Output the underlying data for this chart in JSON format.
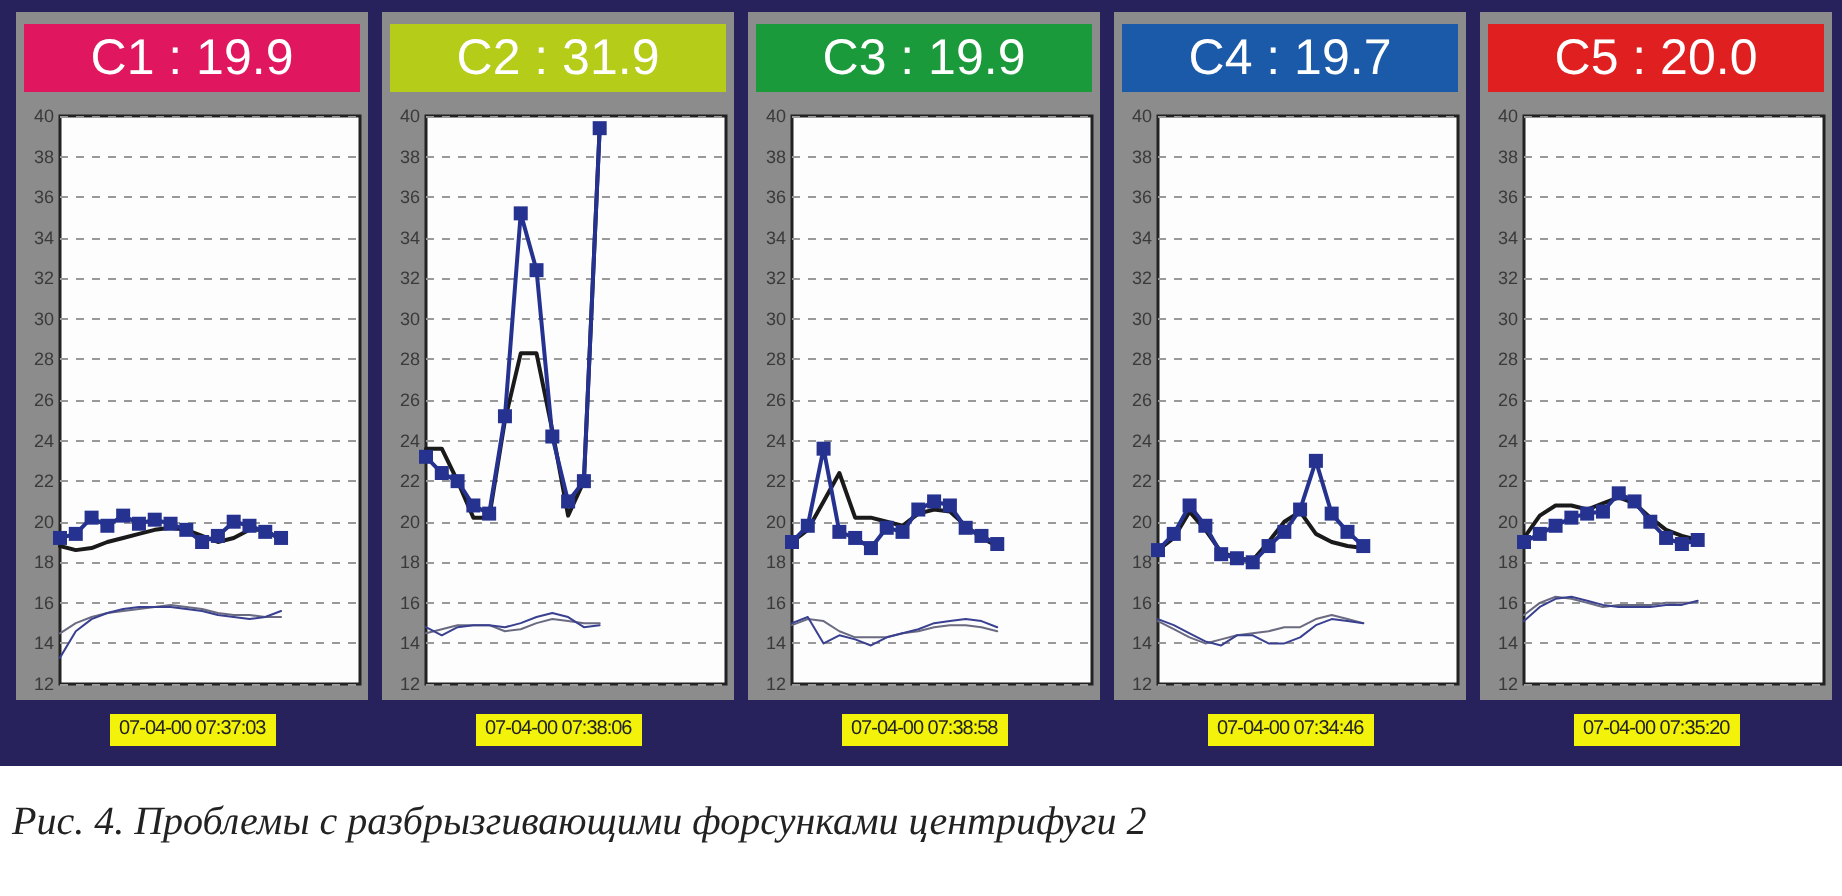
{
  "chart_data": [
    {
      "type": "line",
      "title": "C1 : 19.9",
      "annotations": [
        "07-04-00 07:37:03",
        "Рис. 4. Проблемы с разбрызгивающими форсунками центрифуги 2"
      ],
      "categories": [
        null,
        null,
        null,
        null,
        null,
        null,
        null,
        null,
        null,
        null,
        null,
        null,
        null,
        null,
        null,
        null,
        null,
        null,
        null,
        null
      ],
      "ylim": [
        12,
        40
      ],
      "yticks": [
        12,
        14,
        16,
        18,
        20,
        22,
        24,
        26,
        28,
        30,
        32,
        34,
        36,
        38,
        40
      ],
      "grid": "y",
      "series": [
        {
          "color": "#26328f",
          "marker": "square",
          "values": [
            19.2,
            19.4,
            20.2,
            19.8,
            20.3,
            19.9,
            20.1,
            19.9,
            19.6,
            19.0,
            19.3,
            20.0,
            19.8,
            19.5,
            19.2,
            null,
            null,
            null,
            null,
            null
          ]
        },
        {
          "color": "#1a1a1a",
          "marker": "none",
          "values": [
            18.8,
            18.6,
            18.7,
            19.0,
            19.2,
            19.4,
            19.6,
            19.7,
            19.6,
            19.3,
            19.0,
            19.2,
            19.6,
            19.6,
            19.1,
            null,
            null,
            null,
            null,
            null
          ]
        },
        {
          "color": "#3a4090",
          "marker": "none",
          "values": [
            13.3,
            14.6,
            15.2,
            15.5,
            15.7,
            15.8,
            15.8,
            15.8,
            15.7,
            15.6,
            15.4,
            15.3,
            15.2,
            15.3,
            15.6,
            null,
            null,
            null,
            null,
            null
          ]
        },
        {
          "color": "#6a6a80",
          "marker": "none",
          "values": [
            14.5,
            15.0,
            15.3,
            15.5,
            15.6,
            15.7,
            15.8,
            15.9,
            15.8,
            15.7,
            15.5,
            15.4,
            15.4,
            15.3,
            15.3,
            null,
            null,
            null,
            null,
            null
          ]
        }
      ]
    },
    {
      "type": "line",
      "title": "C2 : 31.9",
      "annotations": [
        "07-04-00 07:38:06"
      ],
      "categories": [
        null,
        null,
        null,
        null,
        null,
        null,
        null,
        null,
        null,
        null,
        null,
        null,
        null,
        null,
        null,
        null,
        null,
        null,
        null,
        null
      ],
      "ylim": [
        12,
        40
      ],
      "yticks": [
        12,
        14,
        16,
        18,
        20,
        22,
        24,
        26,
        28,
        30,
        32,
        34,
        36,
        38,
        40
      ],
      "grid": "y",
      "series": [
        {
          "color": "#26328f",
          "marker": "square",
          "values": [
            23.2,
            22.4,
            22.0,
            20.8,
            20.4,
            25.2,
            35.2,
            32.4,
            24.2,
            21.0,
            22.0,
            39.4,
            null,
            null,
            null,
            null,
            null,
            null,
            null,
            null
          ]
        },
        {
          "color": "#1a1a1a",
          "marker": "none",
          "values": [
            23.6,
            23.6,
            22.0,
            20.2,
            20.2,
            25.0,
            28.3,
            28.3,
            24.5,
            20.3,
            22.0,
            39.4,
            null,
            null,
            null,
            null,
            null,
            null,
            null,
            null
          ]
        },
        {
          "color": "#3a4090",
          "marker": "none",
          "values": [
            14.8,
            14.4,
            14.8,
            14.9,
            14.9,
            14.8,
            15.0,
            15.3,
            15.5,
            15.3,
            14.8,
            14.9,
            null,
            null,
            null,
            null,
            null,
            null,
            null,
            null
          ]
        },
        {
          "color": "#6a6a80",
          "marker": "none",
          "values": [
            14.5,
            14.7,
            14.9,
            14.9,
            14.9,
            14.6,
            14.7,
            15.0,
            15.2,
            15.1,
            15.0,
            15.0,
            null,
            null,
            null,
            null,
            null,
            null,
            null,
            null
          ]
        }
      ]
    },
    {
      "type": "line",
      "title": "C3 : 19.9",
      "annotations": [
        "07-04-00 07:38:58"
      ],
      "categories": [
        null,
        null,
        null,
        null,
        null,
        null,
        null,
        null,
        null,
        null,
        null,
        null,
        null,
        null,
        null,
        null,
        null,
        null,
        null,
        null
      ],
      "ylim": [
        12,
        40
      ],
      "yticks": [
        12,
        14,
        16,
        18,
        20,
        22,
        24,
        26,
        28,
        30,
        32,
        34,
        36,
        38,
        40
      ],
      "grid": "y",
      "series": [
        {
          "color": "#26328f",
          "marker": "square",
          "values": [
            19.0,
            19.8,
            23.6,
            19.5,
            19.2,
            18.7,
            19.7,
            19.5,
            20.6,
            21.0,
            20.8,
            19.7,
            19.3,
            18.9,
            null,
            null,
            null,
            null,
            null,
            null
          ]
        },
        {
          "color": "#1a1a1a",
          "marker": "none",
          "values": [
            19.0,
            19.6,
            21.0,
            22.4,
            20.2,
            20.2,
            20.0,
            19.8,
            20.4,
            20.6,
            20.5,
            19.8,
            19.2,
            18.8,
            null,
            null,
            null,
            null,
            null,
            null
          ]
        },
        {
          "color": "#3a4090",
          "marker": "none",
          "values": [
            15.0,
            15.3,
            14.0,
            14.4,
            14.2,
            13.9,
            14.3,
            14.5,
            14.7,
            15.0,
            15.1,
            15.2,
            15.1,
            14.8,
            null,
            null,
            null,
            null,
            null,
            null
          ]
        },
        {
          "color": "#6a6a80",
          "marker": "none",
          "values": [
            14.9,
            15.2,
            15.1,
            14.6,
            14.3,
            14.3,
            14.3,
            14.5,
            14.6,
            14.8,
            14.9,
            14.9,
            14.8,
            14.6,
            null,
            null,
            null,
            null,
            null,
            null
          ]
        }
      ]
    },
    {
      "type": "line",
      "title": "C4 : 19.7",
      "annotations": [
        "07-04-00 07:34:46"
      ],
      "categories": [
        null,
        null,
        null,
        null,
        null,
        null,
        null,
        null,
        null,
        null,
        null,
        null,
        null,
        null,
        null,
        null,
        null,
        null,
        null,
        null
      ],
      "ylim": [
        12,
        40
      ],
      "yticks": [
        12,
        14,
        16,
        18,
        20,
        22,
        24,
        26,
        28,
        30,
        32,
        34,
        36,
        38,
        40
      ],
      "grid": "y",
      "series": [
        {
          "color": "#26328f",
          "marker": "square",
          "values": [
            18.6,
            19.4,
            20.8,
            19.8,
            18.4,
            18.2,
            18.0,
            18.8,
            19.5,
            20.6,
            23.0,
            20.4,
            19.5,
            18.8,
            null,
            null,
            null,
            null,
            null,
            null
          ]
        },
        {
          "color": "#1a1a1a",
          "marker": "none",
          "values": [
            18.6,
            19.2,
            20.5,
            19.6,
            18.5,
            18.2,
            18.1,
            19.0,
            20.0,
            20.5,
            19.4,
            19.0,
            18.8,
            18.7,
            null,
            null,
            null,
            null,
            null,
            null
          ]
        },
        {
          "color": "#3a4090",
          "marker": "none",
          "values": [
            15.2,
            14.9,
            14.5,
            14.1,
            13.9,
            14.4,
            14.4,
            14.0,
            14.0,
            14.3,
            14.9,
            15.2,
            15.1,
            15.0,
            null,
            null,
            null,
            null,
            null,
            null
          ]
        },
        {
          "color": "#6a6a80",
          "marker": "none",
          "values": [
            15.1,
            14.7,
            14.3,
            14.0,
            14.2,
            14.4,
            14.5,
            14.6,
            14.8,
            14.8,
            15.2,
            15.4,
            15.2,
            15.0,
            null,
            null,
            null,
            null,
            null,
            null
          ]
        }
      ]
    },
    {
      "type": "line",
      "title": "C5 : 20.0",
      "annotations": [
        "07-04-00 07:35:20"
      ],
      "categories": [
        null,
        null,
        null,
        null,
        null,
        null,
        null,
        null,
        null,
        null,
        null,
        null,
        null,
        null,
        null,
        null,
        null,
        null,
        null,
        null
      ],
      "ylim": [
        12,
        40
      ],
      "yticks": [
        12,
        14,
        16,
        18,
        20,
        22,
        24,
        26,
        28,
        30,
        32,
        34,
        36,
        38,
        40
      ],
      "grid": "y",
      "series": [
        {
          "color": "#26328f",
          "marker": "square",
          "values": [
            19.0,
            19.4,
            19.8,
            20.2,
            20.4,
            20.5,
            21.4,
            21.0,
            20.0,
            19.2,
            18.9,
            19.1,
            null,
            null,
            null,
            null,
            null,
            null,
            null,
            null
          ]
        },
        {
          "color": "#1a1a1a",
          "marker": "none",
          "values": [
            19.2,
            20.3,
            20.8,
            20.8,
            20.6,
            20.9,
            21.2,
            20.9,
            20.2,
            19.6,
            19.3,
            19.1,
            null,
            null,
            null,
            null,
            null,
            null,
            null,
            null
          ]
        },
        {
          "color": "#3a4090",
          "marker": "none",
          "values": [
            15.1,
            15.8,
            16.2,
            16.3,
            16.1,
            15.9,
            15.8,
            15.8,
            15.8,
            15.9,
            15.9,
            16.1,
            null,
            null,
            null,
            null,
            null,
            null,
            null,
            null
          ]
        },
        {
          "color": "#6a6a80",
          "marker": "none",
          "values": [
            15.4,
            16.0,
            16.3,
            16.2,
            16.0,
            15.8,
            15.9,
            15.9,
            15.9,
            16.0,
            16.0,
            16.0,
            null,
            null,
            null,
            null,
            null,
            null,
            null,
            null
          ]
        }
      ]
    }
  ]
}
